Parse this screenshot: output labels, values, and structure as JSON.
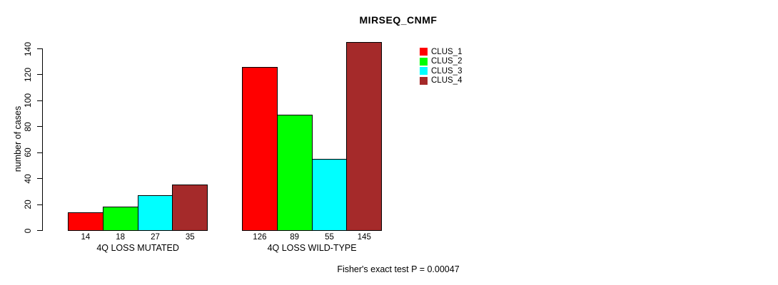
{
  "title": "MIRSEQ_CNMF",
  "chart_data": {
    "type": "bar",
    "title": "MIRSEQ_CNMF",
    "xlabel": "",
    "ylabel": "number of cases",
    "ylim": [
      0,
      140
    ],
    "yticks": [
      0,
      20,
      40,
      60,
      80,
      100,
      120,
      140
    ],
    "grid": false,
    "legend_position": "top-right-inside",
    "bar_value_labels": true,
    "categories": [
      "4Q LOSS MUTATED",
      "4Q LOSS WILD-TYPE"
    ],
    "series": [
      {
        "name": "CLUS_1",
        "color": "#ff0000",
        "values": [
          14,
          126
        ]
      },
      {
        "name": "CLUS_2",
        "color": "#00ff00",
        "values": [
          18,
          89
        ]
      },
      {
        "name": "CLUS_3",
        "color": "#00ffff",
        "values": [
          27,
          55
        ]
      },
      {
        "name": "CLUS_4",
        "color": "#a52a2a",
        "values": [
          35,
          145
        ]
      }
    ],
    "annotation": "Fisher's exact test P = 0.00047"
  },
  "colors": {
    "axis": "#000000",
    "background": "#ffffff",
    "bar_border": "#000000"
  }
}
